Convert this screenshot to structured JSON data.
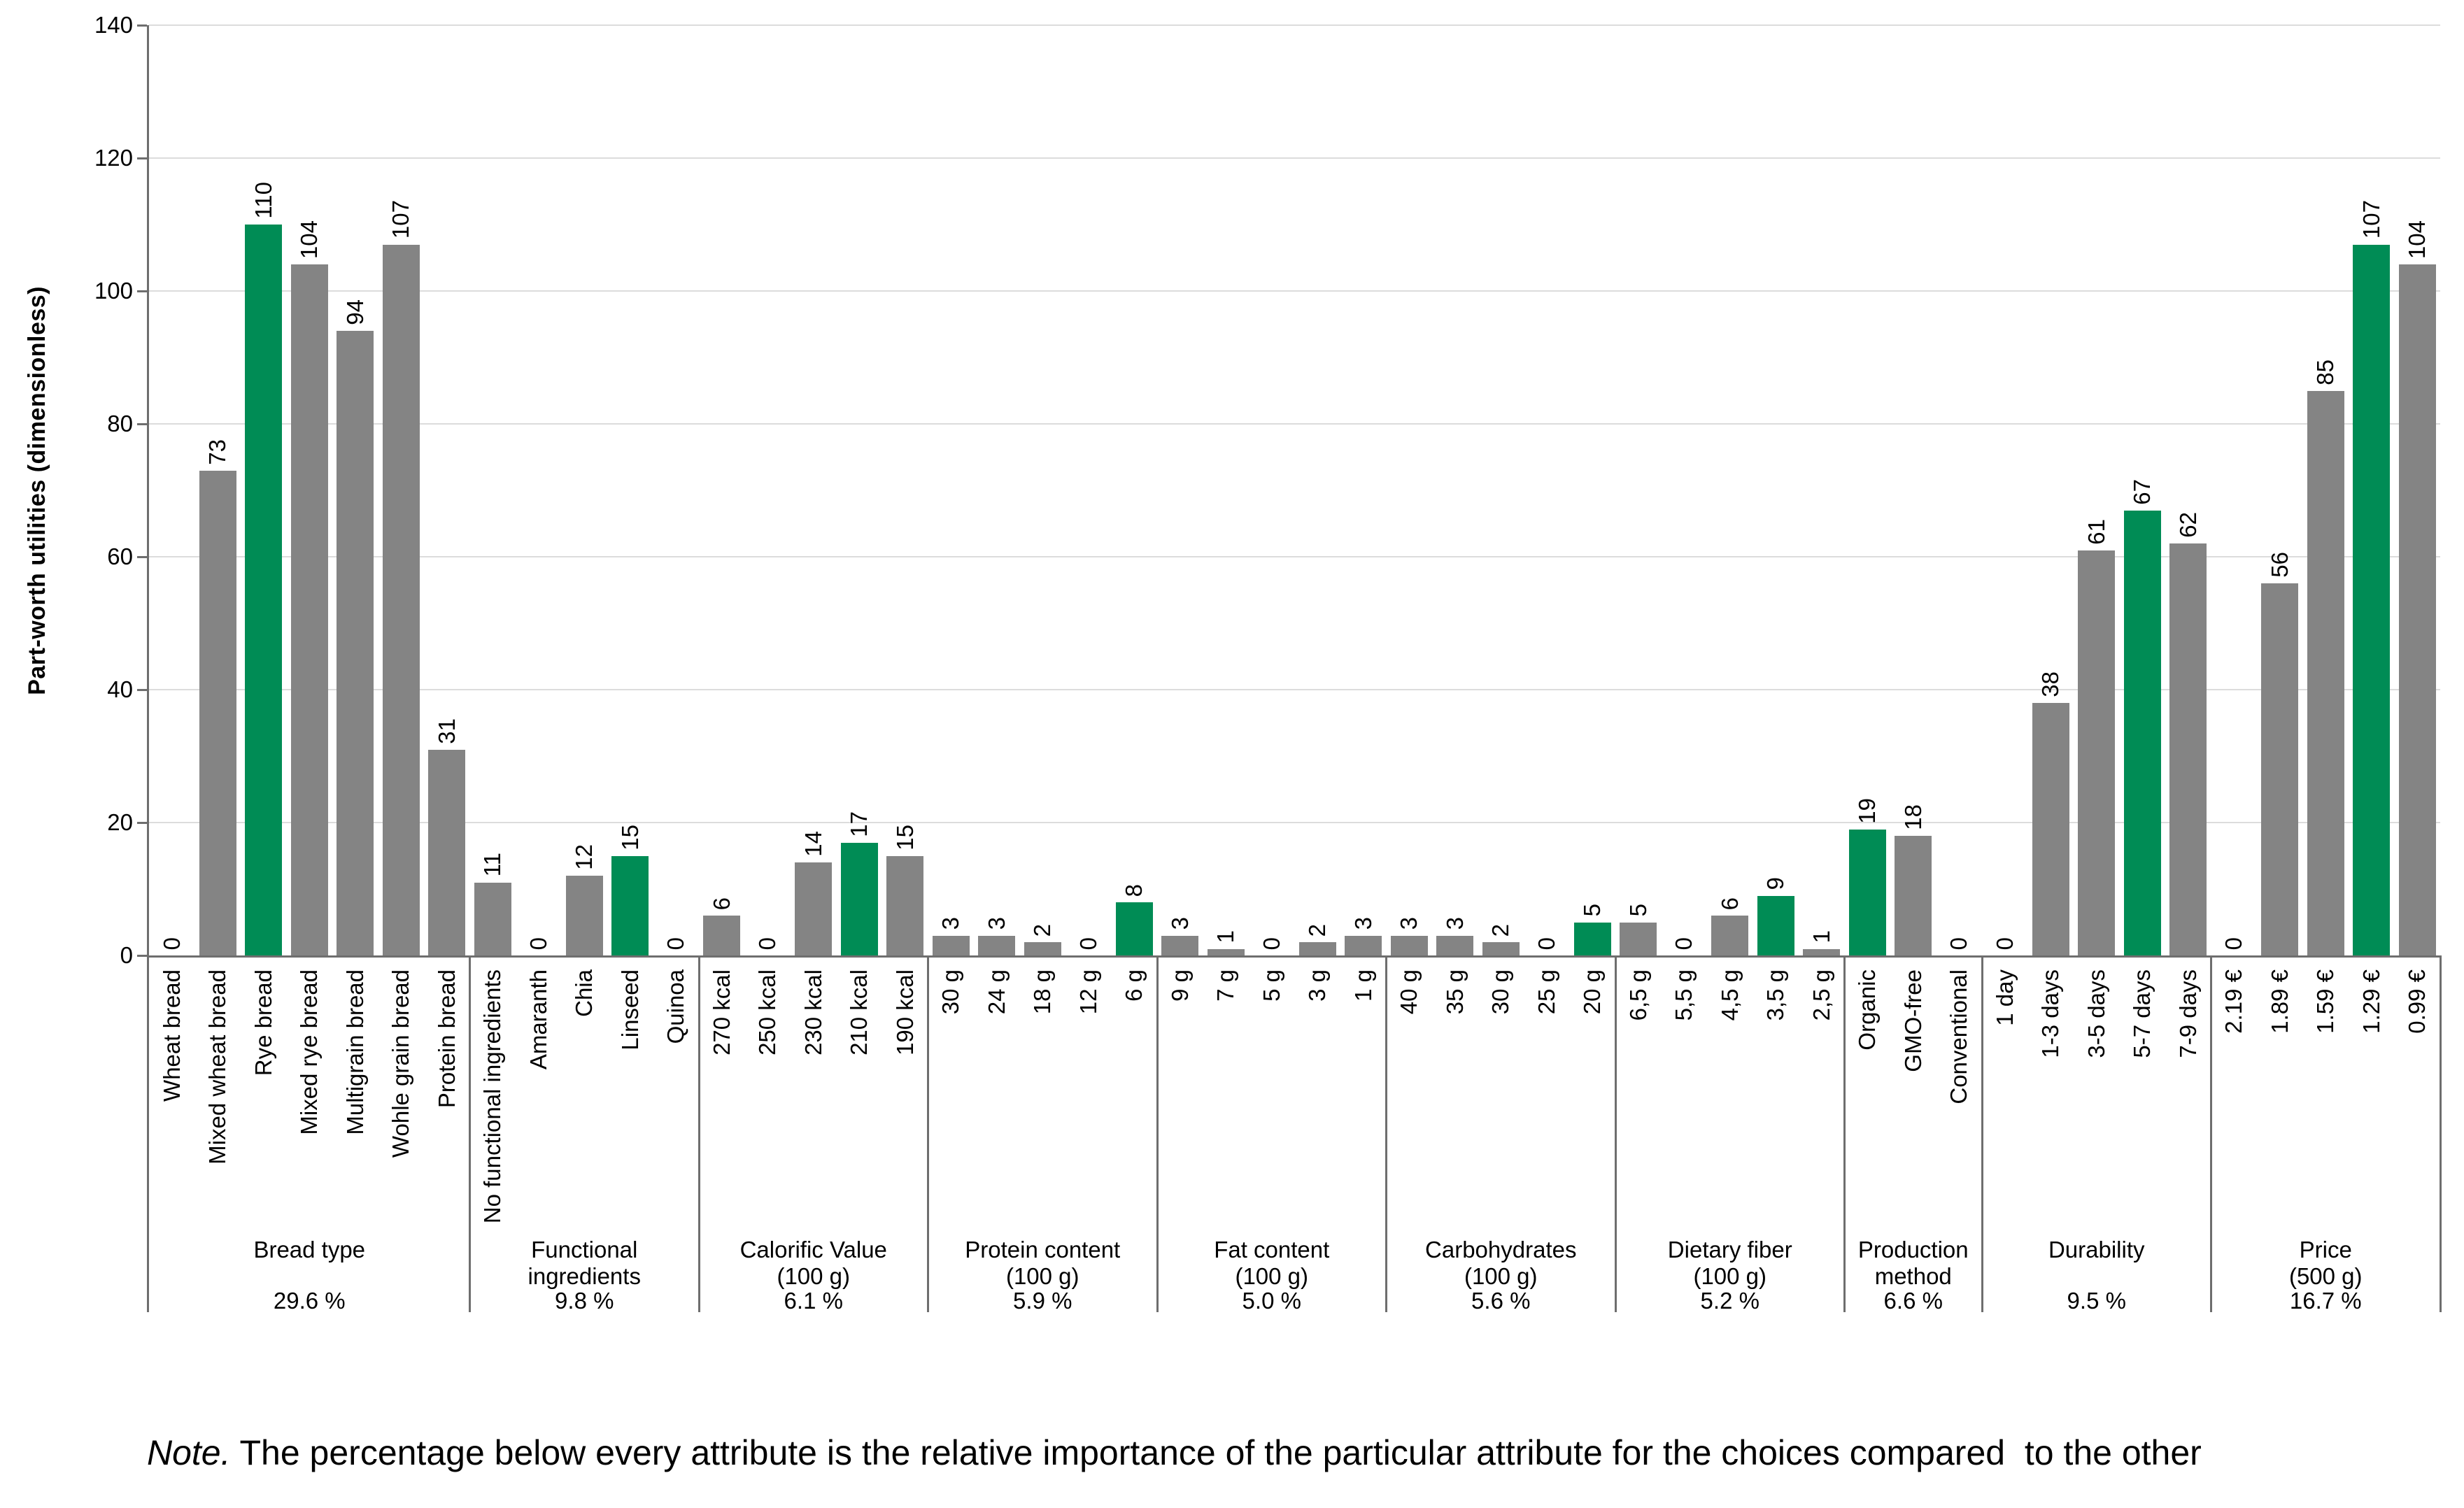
{
  "chart_data": {
    "type": "bar",
    "ylabel": "Part-worth utilities  (dimensionless)",
    "ylim": [
      0,
      140
    ],
    "yticks": [
      0,
      20,
      40,
      60,
      80,
      100,
      120,
      140
    ],
    "grid": "horizontal",
    "legend": "none",
    "colors": {
      "bar_default": "#848484",
      "bar_highlight": "#008C55",
      "gridline": "#DCDCDC",
      "axis": "#6E6E6E",
      "text": "#000000"
    },
    "groups": [
      {
        "label": "Bread type",
        "importance": "29.6 %",
        "bars": [
          {
            "category": "Wheat bread",
            "value": 0,
            "highlight": false
          },
          {
            "category": "Mixed wheat bread",
            "value": 73,
            "highlight": false
          },
          {
            "category": "Rye bread",
            "value": 110,
            "highlight": true
          },
          {
            "category": "Mixed rye bread",
            "value": 104,
            "highlight": false
          },
          {
            "category": "Multigrain bread",
            "value": 94,
            "highlight": false
          },
          {
            "category": "Wohle grain bread",
            "value": 107,
            "highlight": false
          },
          {
            "category": "Protein bread",
            "value": 31,
            "highlight": false
          }
        ]
      },
      {
        "label": "Functional\ningredients",
        "importance": "9.8 %",
        "bars": [
          {
            "category": "No functional ingredients",
            "value": 11,
            "highlight": false
          },
          {
            "category": "Amaranth",
            "value": 0,
            "highlight": false
          },
          {
            "category": "Chia",
            "value": 12,
            "highlight": false
          },
          {
            "category": "Linseed",
            "value": 15,
            "highlight": true
          },
          {
            "category": "Quinoa",
            "value": 0,
            "highlight": false
          }
        ]
      },
      {
        "label": "Calorific Value\n(100 g)",
        "importance": "6.1 %",
        "bars": [
          {
            "category": "270 kcal",
            "value": 6,
            "highlight": false
          },
          {
            "category": "250 kcal",
            "value": 0,
            "highlight": false
          },
          {
            "category": "230 kcal",
            "value": 14,
            "highlight": false
          },
          {
            "category": "210 kcal",
            "value": 17,
            "highlight": true
          },
          {
            "category": "190 kcal",
            "value": 15,
            "highlight": false
          }
        ]
      },
      {
        "label": "Protein content\n(100 g)",
        "importance": "5.9 %",
        "bars": [
          {
            "category": "30 g",
            "value": 3,
            "highlight": false
          },
          {
            "category": "24 g",
            "value": 3,
            "highlight": false
          },
          {
            "category": "18 g",
            "value": 2,
            "highlight": false
          },
          {
            "category": "12 g",
            "value": 0,
            "highlight": false
          },
          {
            "category": "6 g",
            "value": 8,
            "highlight": true
          }
        ]
      },
      {
        "label": "Fat content\n(100 g)",
        "importance": "5.0 %",
        "bars": [
          {
            "category": "9 g",
            "value": 3,
            "highlight": false
          },
          {
            "category": "7 g",
            "value": 1,
            "highlight": false
          },
          {
            "category": "5 g",
            "value": 0,
            "highlight": false
          },
          {
            "category": "3 g",
            "value": 2,
            "highlight": false
          },
          {
            "category": "1 g",
            "value": 3,
            "highlight": false
          }
        ]
      },
      {
        "label": "Carbohydrates\n(100 g)",
        "importance": "5.6 %",
        "bars": [
          {
            "category": "40 g",
            "value": 3,
            "highlight": false
          },
          {
            "category": "35 g",
            "value": 3,
            "highlight": false
          },
          {
            "category": "30 g",
            "value": 2,
            "highlight": false
          },
          {
            "category": "25 g",
            "value": 0,
            "highlight": false
          },
          {
            "category": "20 g",
            "value": 5,
            "highlight": true
          }
        ]
      },
      {
        "label": "Dietary fiber\n(100 g)",
        "importance": "5.2 %",
        "bars": [
          {
            "category": "6,5 g",
            "value": 5,
            "highlight": false
          },
          {
            "category": "5,5 g",
            "value": 0,
            "highlight": false
          },
          {
            "category": "4,5 g",
            "value": 6,
            "highlight": false
          },
          {
            "category": "3,5 g",
            "value": 9,
            "highlight": true
          },
          {
            "category": "2,5 g",
            "value": 1,
            "highlight": false
          }
        ]
      },
      {
        "label": "Production\nmethod",
        "importance": "6.6 %",
        "bars": [
          {
            "category": "Organic",
            "value": 19,
            "highlight": true
          },
          {
            "category": "GMO-free",
            "value": 18,
            "highlight": false
          },
          {
            "category": "Conventional",
            "value": 0,
            "highlight": false
          }
        ]
      },
      {
        "label": "Durability",
        "importance": "9.5 %",
        "bars": [
          {
            "category": "1 day",
            "value": 0,
            "highlight": false
          },
          {
            "category": "1-3 days",
            "value": 38,
            "highlight": false
          },
          {
            "category": "3-5 days",
            "value": 61,
            "highlight": false
          },
          {
            "category": "5-7 days",
            "value": 67,
            "highlight": true
          },
          {
            "category": "7-9 days",
            "value": 62,
            "highlight": false
          }
        ]
      },
      {
        "label": "Price\n(500 g)",
        "importance": "16.7 %",
        "bars": [
          {
            "category": "2.19 €",
            "value": 0,
            "highlight": false
          },
          {
            "category": "1.89 €",
            "value": 56,
            "highlight": false
          },
          {
            "category": "1.59 €",
            "value": 85,
            "highlight": false
          },
          {
            "category": "1.29 €",
            "value": 107,
            "highlight": true
          },
          {
            "category": "0.99 €",
            "value": 104,
            "highlight": false
          }
        ]
      }
    ]
  },
  "note": {
    "prefix": "Note.",
    "text": " The percentage below every attribute is the relative importance of the particular attribute for the choices compared  to the other"
  }
}
